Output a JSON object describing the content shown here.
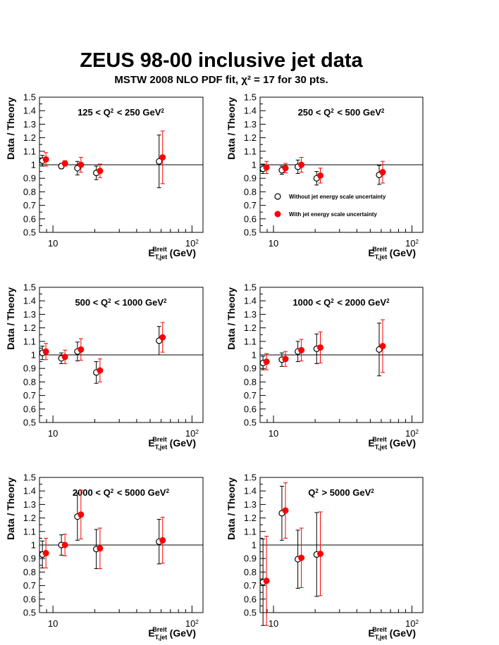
{
  "header": {
    "title": "ZEUS 98-00 inclusive jet data",
    "subtitle": "MSTW 2008 NLO PDF fit, χ² = 17 for 30 pts."
  },
  "colors": {
    "without": "#000000",
    "with": "#ff0000",
    "frame": "#000000"
  },
  "legend": {
    "without": "Without jet energy scale uncertainty",
    "with": "With jet energy scale uncertainty"
  },
  "chart_data": [
    {
      "type": "scatter",
      "title": "125 < Q² < 250 GeV²",
      "xlabel": "E_T,jet^Breit (GeV)",
      "ylabel": "Data / Theory",
      "xscale": "log",
      "xlim": [
        8,
        120
      ],
      "ylim": [
        0.5,
        1.5
      ],
      "reference_line": 1.0,
      "series": [
        {
          "marker": "open-circle",
          "x": [
            8.4,
            11.5,
            15.0,
            20.5,
            58.0
          ],
          "y": [
            1.03,
            0.99,
            0.975,
            0.94,
            1.025
          ],
          "err": [
            0.04,
            0.02,
            0.05,
            0.05,
            0.195
          ]
        },
        {
          "marker": "filled-circle",
          "x": [
            8.9,
            12.2,
            15.9,
            21.8,
            61.5
          ],
          "y": [
            1.04,
            1.01,
            1.0,
            0.955,
            1.055
          ],
          "err": [
            0.05,
            0.02,
            0.055,
            0.05,
            0.195
          ]
        }
      ]
    },
    {
      "type": "scatter",
      "title": "250 < Q² < 500 GeV²",
      "xlabel": "E_T,jet^Breit (GeV)",
      "ylabel": "Data / Theory",
      "xscale": "log",
      "xlim": [
        8,
        120
      ],
      "ylim": [
        0.5,
        1.5
      ],
      "reference_line": 1.0,
      "legend_position": "middle-right",
      "series": [
        {
          "marker": "open-circle",
          "x": [
            8.4,
            11.5,
            15.0,
            20.5,
            58.0
          ],
          "y": [
            0.97,
            0.96,
            0.985,
            0.9,
            0.925
          ],
          "err": [
            0.035,
            0.03,
            0.05,
            0.05,
            0.07
          ]
        },
        {
          "marker": "filled-circle",
          "x": [
            8.9,
            12.2,
            15.9,
            21.8,
            61.5
          ],
          "y": [
            0.98,
            0.975,
            1.0,
            0.92,
            0.945
          ],
          "err": [
            0.045,
            0.035,
            0.055,
            0.055,
            0.08
          ]
        }
      ]
    },
    {
      "type": "scatter",
      "title": "500 < Q² < 1000 GeV²",
      "xlabel": "E_T,jet^Breit (GeV)",
      "ylabel": "Data / Theory",
      "xscale": "log",
      "xlim": [
        8,
        120
      ],
      "ylim": [
        0.5,
        1.5
      ],
      "reference_line": 1.0,
      "series": [
        {
          "marker": "open-circle",
          "x": [
            8.4,
            11.5,
            15.0,
            20.5,
            58.0
          ],
          "y": [
            1.015,
            0.975,
            1.025,
            0.87,
            1.105
          ],
          "err": [
            0.05,
            0.04,
            0.07,
            0.08,
            0.105
          ]
        },
        {
          "marker": "filled-circle",
          "x": [
            8.9,
            12.2,
            15.9,
            21.8,
            61.5
          ],
          "y": [
            1.025,
            0.985,
            1.04,
            0.885,
            1.13
          ],
          "err": [
            0.06,
            0.05,
            0.08,
            0.085,
            0.11
          ]
        }
      ]
    },
    {
      "type": "scatter",
      "title": "1000 < Q² < 2000 GeV²",
      "xlabel": "E_T,jet^Breit (GeV)",
      "ylabel": "Data / Theory",
      "xscale": "log",
      "xlim": [
        8,
        120
      ],
      "ylim": [
        0.5,
        1.5
      ],
      "reference_line": 1.0,
      "series": [
        {
          "marker": "open-circle",
          "x": [
            8.4,
            11.5,
            15.0,
            20.5,
            58.0
          ],
          "y": [
            0.94,
            0.965,
            1.025,
            1.045,
            1.04
          ],
          "err": [
            0.05,
            0.05,
            0.075,
            0.11,
            0.195
          ]
        },
        {
          "marker": "filled-circle",
          "x": [
            8.9,
            12.2,
            15.9,
            21.8,
            61.5
          ],
          "y": [
            0.95,
            0.97,
            1.035,
            1.055,
            1.065
          ],
          "err": [
            0.06,
            0.055,
            0.08,
            0.115,
            0.195
          ]
        }
      ]
    },
    {
      "type": "scatter",
      "title": "2000 < Q² < 5000 GeV²",
      "xlabel": "E_T,jet^Breit (GeV)",
      "ylabel": "Data / Theory",
      "xscale": "log",
      "xlim": [
        8,
        120
      ],
      "ylim": [
        0.5,
        1.5
      ],
      "reference_line": 1.0,
      "series": [
        {
          "marker": "open-circle",
          "x": [
            8.4,
            11.5,
            15.0,
            20.5,
            58.0
          ],
          "y": [
            0.93,
            1.0,
            1.21,
            0.97,
            1.025
          ],
          "err": [
            0.1,
            0.075,
            0.175,
            0.145,
            0.165
          ]
        },
        {
          "marker": "filled-circle",
          "x": [
            8.9,
            12.2,
            15.9,
            21.8,
            61.5
          ],
          "y": [
            0.94,
            1.0,
            1.225,
            0.975,
            1.035
          ],
          "err": [
            0.11,
            0.08,
            0.18,
            0.15,
            0.17
          ]
        }
      ]
    },
    {
      "type": "scatter",
      "title": "Q² > 5000 GeV²",
      "xlabel": "E_T,jet^Breit (GeV)",
      "ylabel": "Data / Theory",
      "xscale": "log",
      "xlim": [
        8,
        120
      ],
      "ylim": [
        0.5,
        1.5
      ],
      "reference_line": 1.0,
      "series": [
        {
          "marker": "open-circle",
          "x": [
            8.4,
            11.5,
            15.0,
            20.5
          ],
          "y": [
            0.725,
            1.235,
            0.895,
            0.93
          ],
          "err": [
            0.32,
            0.2,
            0.215,
            0.31
          ]
        },
        {
          "marker": "filled-circle",
          "x": [
            8.9,
            12.2,
            15.9,
            21.8
          ],
          "y": [
            0.735,
            1.255,
            0.905,
            0.935
          ],
          "err": [
            0.33,
            0.205,
            0.22,
            0.31
          ]
        }
      ]
    }
  ]
}
